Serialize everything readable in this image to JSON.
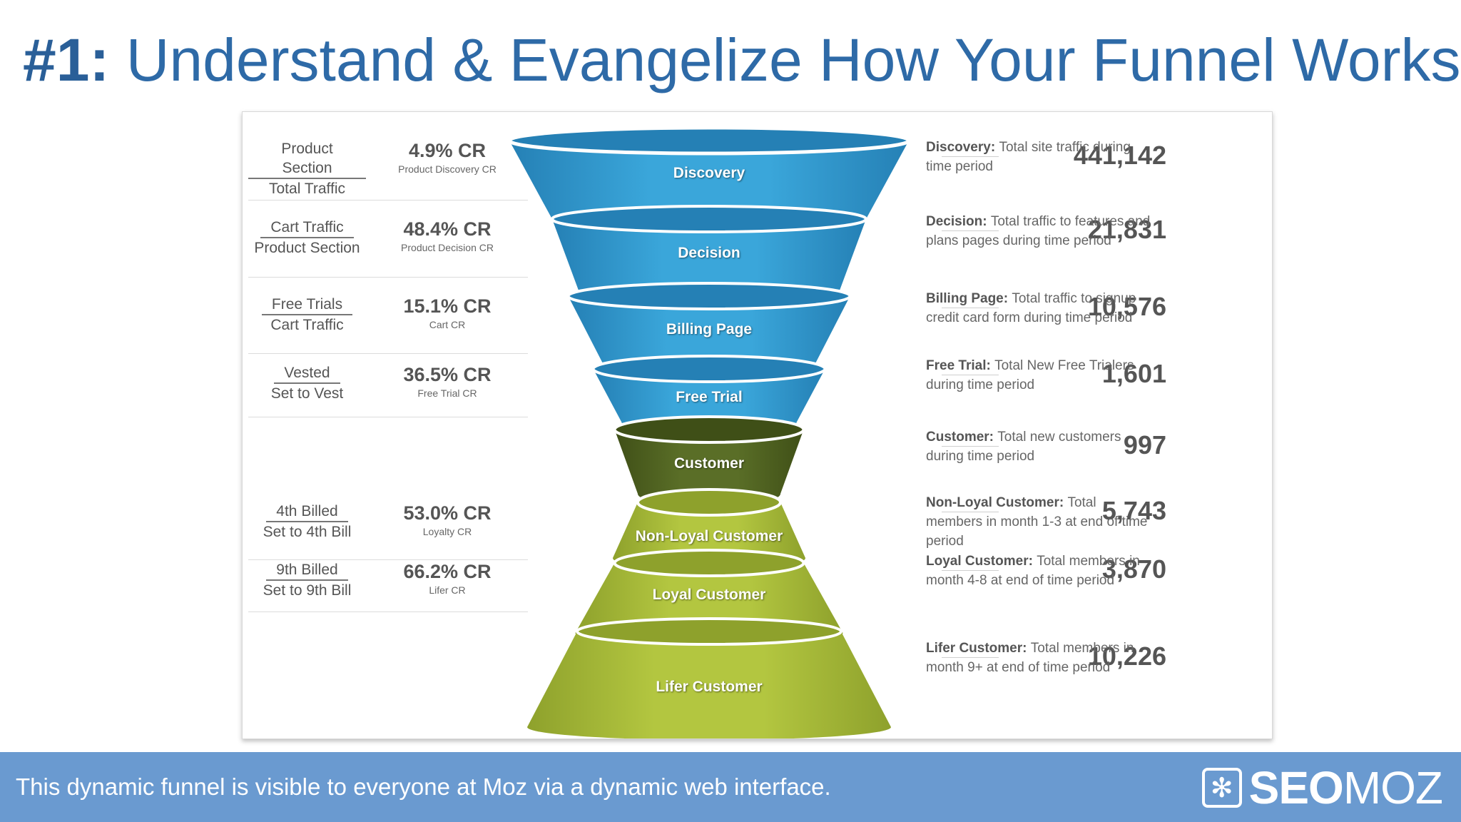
{
  "title": {
    "prefix": "#1:",
    "text": "Understand & Evangelize How Your Funnel Works"
  },
  "stages": [
    {
      "label": "Discovery",
      "count": "441,142",
      "desc_bold": "Discovery:",
      "desc": "Total site traffic during time period",
      "ratio_top": "Product Section",
      "ratio_bottom": "Total Traffic",
      "cr": "4.9% CR",
      "cr_label": "Product Discovery CR"
    },
    {
      "label": "Decision",
      "count": "21,831",
      "desc_bold": "Decision:",
      "desc": "Total traffic to features and plans pages during time period",
      "ratio_top": "Cart Traffic",
      "ratio_bottom": "Product Section",
      "cr": "48.4% CR",
      "cr_label": "Product Decision CR"
    },
    {
      "label": "Billing Page",
      "count": "10,576",
      "desc_bold": "Billing Page:",
      "desc": "Total traffic to signup credit card form during time period",
      "ratio_top": "Free Trials",
      "ratio_bottom": "Cart Traffic",
      "cr": "15.1% CR",
      "cr_label": "Cart CR"
    },
    {
      "label": "Free Trial",
      "count": "1,601",
      "desc_bold": "Free Trial:",
      "desc": "Total New Free Trialers during time period",
      "ratio_top": "Vested",
      "ratio_bottom": "Set to Vest",
      "cr": "36.5% CR",
      "cr_label": "Free Trial CR"
    },
    {
      "label": "Customer",
      "count": "997",
      "desc_bold": "Customer:",
      "desc": "Total new customers during time period"
    },
    {
      "label": "Non-Loyal Customer",
      "count": "5,743",
      "desc_bold": "Non-Loyal Customer:",
      "desc": "Total members in month 1-3 at end of time period",
      "ratio_top": "4th Billed",
      "ratio_bottom": "Set to 4th Bill",
      "cr": "53.0% CR",
      "cr_label": "Loyalty CR"
    },
    {
      "label": "Loyal Customer",
      "count": "3,870",
      "desc_bold": "Loyal Customer:",
      "desc": "Total members in month 4-8 at end of time period",
      "ratio_top": "9th Billed",
      "ratio_bottom": "Set to 9th Bill",
      "cr": "66.2% CR",
      "cr_label": "Lifer CR"
    },
    {
      "label": "Lifer Customer",
      "count": "10,226",
      "desc_bold": "Lifer Customer:",
      "desc": "Total members in month 9+ at end of time period"
    }
  ],
  "colors": {
    "blue": "#3aa6da",
    "blue_dark": "#2580b5",
    "olive": "#5a6e27",
    "lime": "#b3c640",
    "lime_dark": "#8ea12c",
    "title": "#2e6aa7",
    "footer": "#6a9ad0"
  },
  "footer": {
    "text": "This dynamic funnel is visible to everyone at Moz via a dynamic web interface.",
    "logo_bold": "SEO",
    "logo_thin": "MOZ",
    "logo_icon": "gear-icon"
  }
}
